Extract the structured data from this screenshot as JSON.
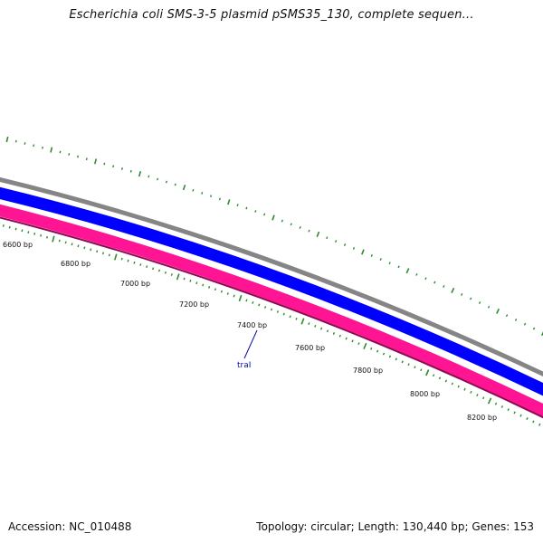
{
  "title": "Escherichia coli SMS-3-5 plasmid pSMS35_130, complete sequen...",
  "footer": {
    "accession": "Accession: NC_010488",
    "summary": "Topology: circular; Length: 130,440 bp; Genes: 153"
  },
  "map": {
    "tick_labels": [
      "6600 bp",
      "6800 bp",
      "7000 bp",
      "7200 bp",
      "7400 bp",
      "7600 bp",
      "7800 bp",
      "8000 bp",
      "8200 bp"
    ],
    "gene_labels": [
      "traI"
    ],
    "colors": {
      "backbone": "#858585",
      "forward_strand": "#0000ff",
      "reverse_strand": "#ff1493",
      "ticks": "#2e8b2e",
      "gene_label": "#0a0a9e"
    }
  }
}
